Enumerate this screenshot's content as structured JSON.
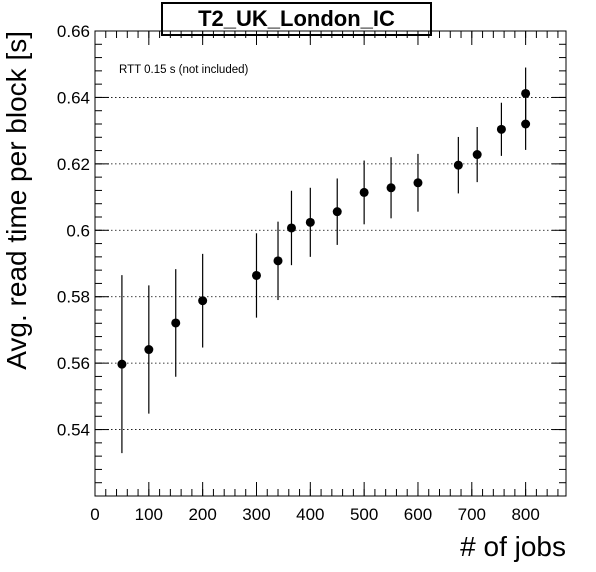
{
  "chart_data": {
    "type": "scatter",
    "title": "T2_UK_London_IC",
    "xlabel": "# of jobs",
    "ylabel": "Avg. read time per block [s]",
    "annotation": "RTT 0.15 s (not included)",
    "xlim": [
      0,
      875
    ],
    "ylim": [
      0.52,
      0.66
    ],
    "xticks": [
      0,
      100,
      200,
      300,
      400,
      500,
      600,
      700,
      800
    ],
    "yticks": [
      0.54,
      0.56,
      0.58,
      0.6,
      0.62,
      0.64,
      0.66
    ],
    "ytick_labels": [
      "0.54",
      "0.56",
      "0.58",
      "0.6",
      "0.62",
      "0.64",
      "0.66"
    ],
    "grid": "y-dotted",
    "points": [
      {
        "x": 50,
        "y": 0.5597,
        "err": 0.0268
      },
      {
        "x": 100,
        "y": 0.5641,
        "err": 0.0193
      },
      {
        "x": 150,
        "y": 0.5721,
        "err": 0.0162
      },
      {
        "x": 200,
        "y": 0.5788,
        "err": 0.0141
      },
      {
        "x": 300,
        "y": 0.5864,
        "err": 0.0127
      },
      {
        "x": 340,
        "y": 0.5908,
        "err": 0.0118
      },
      {
        "x": 365,
        "y": 0.6007,
        "err": 0.0112
      },
      {
        "x": 400,
        "y": 0.6024,
        "err": 0.0104
      },
      {
        "x": 450,
        "y": 0.6056,
        "err": 0.01
      },
      {
        "x": 500,
        "y": 0.6114,
        "err": 0.0096
      },
      {
        "x": 550,
        "y": 0.6128,
        "err": 0.0092
      },
      {
        "x": 600,
        "y": 0.6143,
        "err": 0.0087
      },
      {
        "x": 675,
        "y": 0.6196,
        "err": 0.0085
      },
      {
        "x": 710,
        "y": 0.6228,
        "err": 0.0083
      },
      {
        "x": 755,
        "y": 0.6304,
        "err": 0.008
      },
      {
        "x": 800,
        "y": 0.632,
        "err": 0.0078
      },
      {
        "x": 800,
        "y": 0.6412,
        "err": 0.0078
      }
    ]
  }
}
